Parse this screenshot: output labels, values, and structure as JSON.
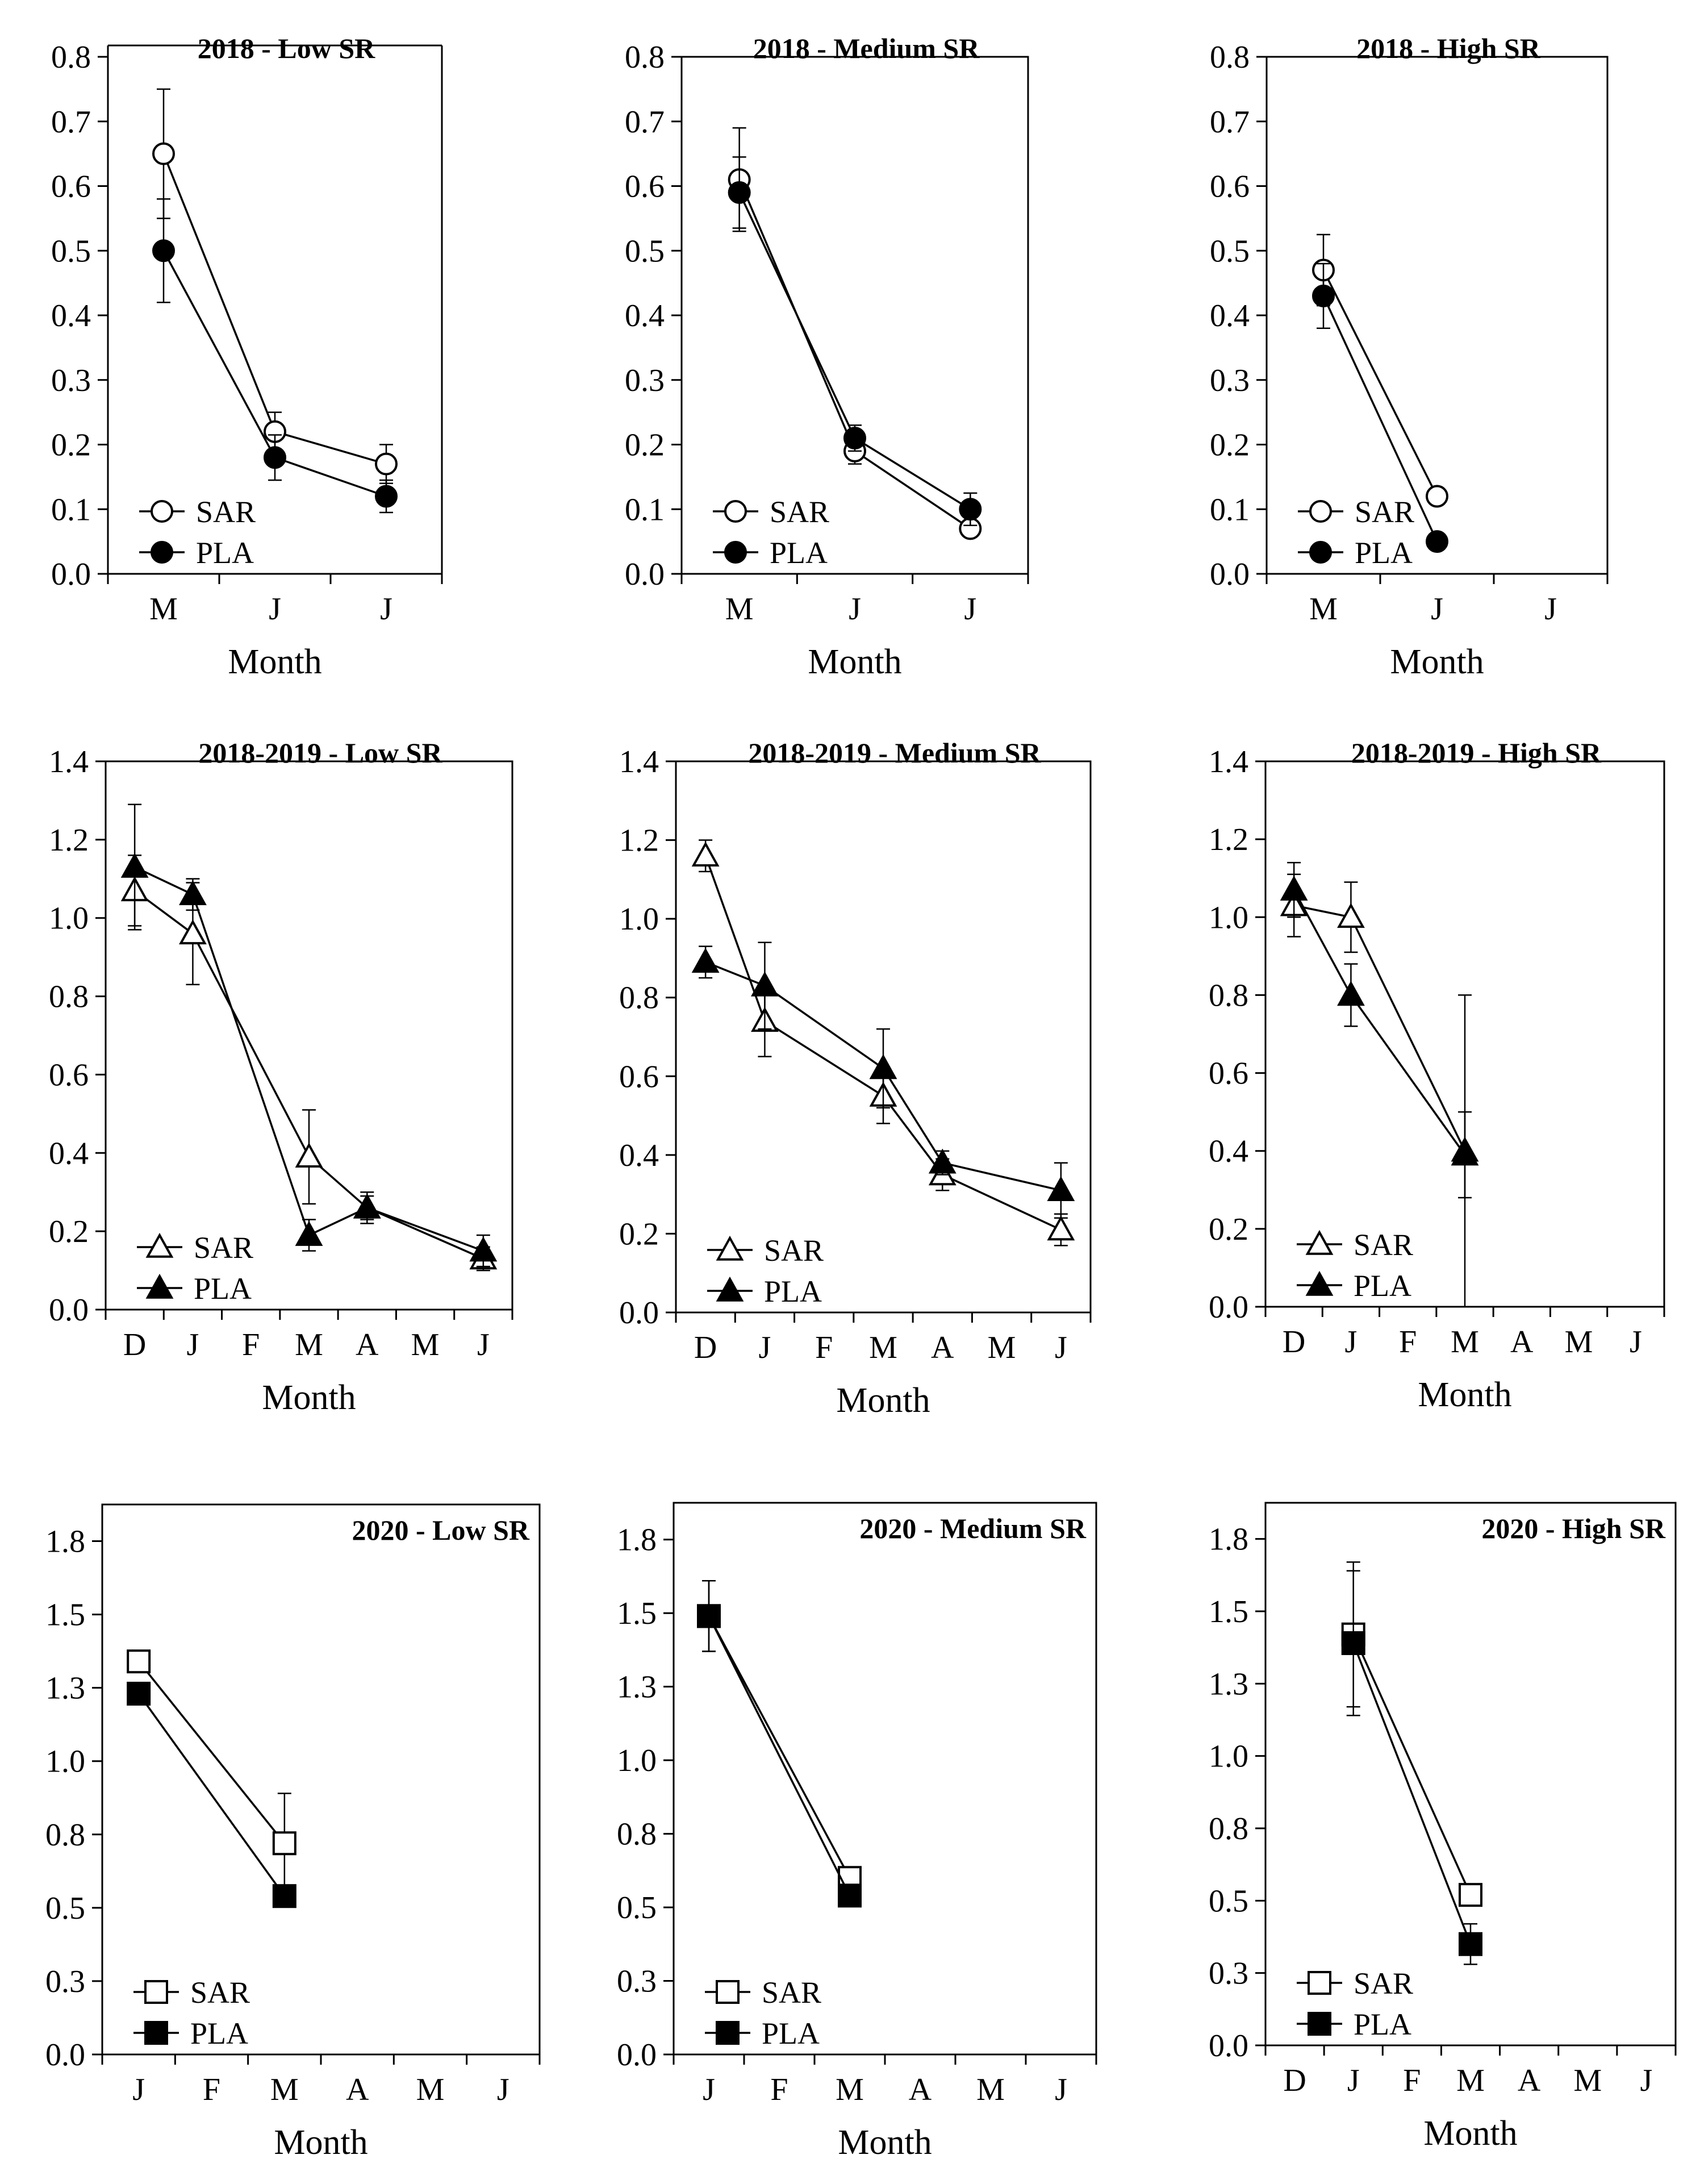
{
  "figure": {
    "colors": {
      "ink": "#000000",
      "background": "#ffffff",
      "open_marker_fill": "#ffffff"
    },
    "xlabel": "Month",
    "legend": [
      "SAR",
      "PLA"
    ]
  },
  "chart_data": [
    {
      "type": "line",
      "title": "2018 - Low SR",
      "title_align": "left",
      "xlabel": "Month",
      "ylabel": "",
      "categories": [
        "M",
        "J",
        "J"
      ],
      "ylim": [
        0,
        0.8
      ],
      "yticks": [
        0,
        0.1,
        0.2,
        0.3,
        0.4,
        0.5,
        0.6,
        0.7,
        0.8
      ],
      "ytick_labels": [
        "0.0",
        "0.1",
        "0.2",
        "0.3",
        "0.4",
        "0.5",
        "0.6",
        "0.7",
        "0.8"
      ],
      "marker": "circle",
      "series": [
        {
          "name": "SAR",
          "fill": "open",
          "x": [
            0,
            1,
            2
          ],
          "values": [
            0.65,
            0.22,
            0.17
          ],
          "err": [
            0.1,
            0.03,
            0.03
          ]
        },
        {
          "name": "PLA",
          "fill": "filled",
          "x": [
            0,
            1,
            2
          ],
          "values": [
            0.5,
            0.18,
            0.12
          ],
          "err": [
            0.08,
            0.035,
            0.025
          ]
        }
      ]
    },
    {
      "type": "line",
      "title": "2018 - Medium SR",
      "title_align": "left",
      "xlabel": "Month",
      "ylabel": "",
      "categories": [
        "M",
        "J",
        "J"
      ],
      "ylim": [
        0,
        0.8
      ],
      "yticks": [
        0,
        0.1,
        0.2,
        0.3,
        0.4,
        0.5,
        0.6,
        0.7,
        0.8
      ],
      "ytick_labels": [
        "0.0",
        "0.1",
        "0.2",
        "0.3",
        "0.4",
        "0.5",
        "0.6",
        "0.7",
        "0.8"
      ],
      "marker": "circle",
      "series": [
        {
          "name": "SAR",
          "fill": "open",
          "x": [
            0,
            1,
            2
          ],
          "values": [
            0.61,
            0.19,
            0.07
          ],
          "err": [
            0.08,
            0.02,
            0.01
          ]
        },
        {
          "name": "PLA",
          "fill": "filled",
          "x": [
            0,
            1,
            2
          ],
          "values": [
            0.59,
            0.21,
            0.1
          ],
          "err": [
            0.055,
            0.02,
            0.025
          ]
        }
      ]
    },
    {
      "type": "line",
      "title": "2018 - High SR",
      "title_align": "left",
      "xlabel": "Month",
      "ylabel": "",
      "categories": [
        "M",
        "J",
        "J"
      ],
      "ylim": [
        0,
        0.8
      ],
      "yticks": [
        0,
        0.1,
        0.2,
        0.3,
        0.4,
        0.5,
        0.6,
        0.7,
        0.8
      ],
      "ytick_labels": [
        "0.0",
        "0.1",
        "0.2",
        "0.3",
        "0.4",
        "0.5",
        "0.6",
        "0.7",
        "0.8"
      ],
      "marker": "circle",
      "series": [
        {
          "name": "SAR",
          "fill": "open",
          "x": [
            0,
            1
          ],
          "values": [
            0.47,
            0.12
          ],
          "err": [
            0.055,
            0.0
          ]
        },
        {
          "name": "PLA",
          "fill": "filled",
          "x": [
            0,
            1
          ],
          "values": [
            0.43,
            0.05
          ],
          "err": [
            0.05,
            0.0
          ]
        }
      ]
    },
    {
      "type": "line",
      "title": "2018-2019 - Low SR",
      "title_align": "left",
      "xlabel": "Month",
      "ylabel": "",
      "categories": [
        "D",
        "J",
        "F",
        "M",
        "A",
        "M",
        "J"
      ],
      "ylim": [
        0,
        1.4
      ],
      "yticks": [
        0,
        0.2,
        0.4,
        0.6,
        0.8,
        1.0,
        1.2,
        1.4
      ],
      "ytick_labels": [
        "0.0",
        "0.2",
        "0.4",
        "0.6",
        "0.8",
        "1.0",
        "1.2",
        "1.4"
      ],
      "marker": "triangle",
      "series": [
        {
          "name": "SAR",
          "fill": "open",
          "x": [
            0,
            1,
            3,
            4,
            6
          ],
          "values": [
            1.07,
            0.96,
            0.39,
            0.26,
            0.13
          ],
          "err": [
            0.09,
            0.13,
            0.12,
            0.03,
            0.03
          ]
        },
        {
          "name": "PLA",
          "fill": "filled",
          "x": [
            0,
            1,
            3,
            4,
            6
          ],
          "values": [
            1.13,
            1.06,
            0.19,
            0.26,
            0.15
          ],
          "err": [
            0.16,
            0.04,
            0.04,
            0.04,
            0.04
          ]
        }
      ]
    },
    {
      "type": "line",
      "title": "2018-2019 - Medium SR",
      "title_align": "left",
      "xlabel": "Month",
      "ylabel": "",
      "categories": [
        "D",
        "J",
        "F",
        "M",
        "A",
        "M",
        "J"
      ],
      "ylim": [
        0,
        1.4
      ],
      "yticks": [
        0,
        0.2,
        0.4,
        0.6,
        0.8,
        1.0,
        1.2,
        1.4
      ],
      "ytick_labels": [
        "0.0",
        "0.2",
        "0.4",
        "0.6",
        "0.8",
        "1.0",
        "1.2",
        "1.4"
      ],
      "marker": "triangle",
      "series": [
        {
          "name": "SAR",
          "fill": "open",
          "x": [
            0,
            1,
            3,
            4,
            6
          ],
          "values": [
            1.16,
            0.74,
            0.55,
            0.35,
            0.21
          ],
          "err": [
            0.04,
            0.09,
            0.07,
            0.04,
            0.04
          ]
        },
        {
          "name": "PLA",
          "fill": "filled",
          "x": [
            0,
            1,
            3,
            4,
            6
          ],
          "values": [
            0.89,
            0.83,
            0.62,
            0.38,
            0.31
          ],
          "err": [
            0.04,
            0.11,
            0.1,
            0.03,
            0.07
          ]
        }
      ]
    },
    {
      "type": "line",
      "title": "2018-2019 - High SR",
      "title_align": "left",
      "xlabel": "Month",
      "ylabel": "",
      "categories": [
        "D",
        "J",
        "F",
        "M",
        "A",
        "M",
        "J"
      ],
      "ylim": [
        0,
        1.4
      ],
      "yticks": [
        0,
        0.2,
        0.4,
        0.6,
        0.8,
        1.0,
        1.2,
        1.4
      ],
      "ytick_labels": [
        "0.0",
        "0.2",
        "0.4",
        "0.6",
        "0.8",
        "1.0",
        "1.2",
        "1.4"
      ],
      "marker": "triangle",
      "series": [
        {
          "name": "SAR",
          "fill": "open",
          "x": [
            0,
            1,
            3
          ],
          "values": [
            1.03,
            1.0,
            0.4
          ],
          "err": [
            0.08,
            0.09,
            0.4
          ]
        },
        {
          "name": "PLA",
          "fill": "filled",
          "x": [
            0,
            1,
            3
          ],
          "values": [
            1.07,
            0.8,
            0.39
          ],
          "err": [
            0.07,
            0.08,
            0.11
          ]
        }
      ]
    },
    {
      "type": "line",
      "title": "2020 - Low SR",
      "title_align": "right",
      "xlabel": "Month",
      "ylabel": "",
      "categories": [
        "J",
        "F",
        "M",
        "A",
        "M",
        "J"
      ],
      "ylim": [
        0,
        1.875
      ],
      "yticks": [
        0,
        0.25,
        0.5,
        0.75,
        1.0,
        1.25,
        1.5,
        1.75
      ],
      "ytick_labels": [
        "0.0",
        "0.3",
        "0.5",
        "0.8",
        "1.0",
        "1.3",
        "1.5",
        "1.8"
      ],
      "marker": "square",
      "series": [
        {
          "name": "SAR",
          "fill": "open",
          "x": [
            0,
            2
          ],
          "values": [
            1.34,
            0.72
          ],
          "err": [
            0.0,
            0.17
          ]
        },
        {
          "name": "PLA",
          "fill": "filled",
          "x": [
            0,
            2
          ],
          "values": [
            1.23,
            0.54
          ],
          "err": [
            0.0,
            0.03
          ]
        }
      ]
    },
    {
      "type": "line",
      "title": "2020 - Medium SR",
      "title_align": "right",
      "xlabel": "Month",
      "ylabel": "",
      "categories": [
        "J",
        "F",
        "M",
        "A",
        "M",
        "J"
      ],
      "ylim": [
        0,
        1.875
      ],
      "yticks": [
        0,
        0.25,
        0.5,
        0.75,
        1.0,
        1.25,
        1.5,
        1.75
      ],
      "ytick_labels": [
        "0.0",
        "0.3",
        "0.5",
        "0.8",
        "1.0",
        "1.3",
        "1.5",
        "1.8"
      ],
      "marker": "square",
      "series": [
        {
          "name": "SAR",
          "fill": "open",
          "x": [
            0,
            2
          ],
          "values": [
            1.49,
            0.6
          ],
          "err": [
            0.12,
            0.0
          ]
        },
        {
          "name": "PLA",
          "fill": "filled",
          "x": [
            0,
            2
          ],
          "values": [
            1.49,
            0.54
          ],
          "err": [
            0.12,
            0.0
          ]
        }
      ]
    },
    {
      "type": "line",
      "title": "2020 - High SR",
      "title_align": "right",
      "xlabel": "Month",
      "ylabel": "",
      "categories": [
        "D",
        "J",
        "F",
        "M",
        "A",
        "M",
        "J"
      ],
      "ylim": [
        0,
        1.875
      ],
      "yticks": [
        0,
        0.25,
        0.5,
        0.75,
        1.0,
        1.25,
        1.5,
        1.75
      ],
      "ytick_labels": [
        "0.0",
        "0.3",
        "0.5",
        "0.8",
        "1.0",
        "1.3",
        "1.5",
        "1.8"
      ],
      "marker": "square",
      "series": [
        {
          "name": "SAR",
          "fill": "open",
          "x": [
            1,
            3
          ],
          "values": [
            1.42,
            0.52
          ],
          "err": [
            0.25,
            0.0
          ]
        },
        {
          "name": "PLA",
          "fill": "filled",
          "x": [
            1,
            3
          ],
          "values": [
            1.39,
            0.35
          ],
          "err": [
            0.25,
            0.07
          ]
        }
      ]
    }
  ]
}
